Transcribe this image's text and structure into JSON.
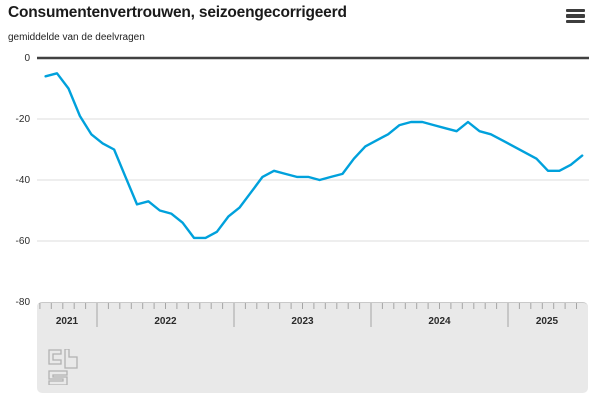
{
  "header": {
    "title": "Consumentenvertrouwen, seizoengecorrigeerd",
    "subtitle": "gemiddelde van de deelvragen",
    "menu_icon": "hamburger-icon"
  },
  "chart_data": {
    "type": "line",
    "title": "Consumentenvertrouwen, seizoengecorrigeerd",
    "subtitle": "gemiddelde van de deelvragen",
    "x_interval": "month",
    "x_start": "2021-08",
    "x_end": "2025-07",
    "year_labels": [
      "2021",
      "2022",
      "2023",
      "2024",
      "2025"
    ],
    "y_ticks": [
      0,
      -20,
      -40,
      -60,
      -80
    ],
    "ylim": [
      -80,
      0
    ],
    "grid": true,
    "legend": "none",
    "line_color": "#00a1dc",
    "series": [
      {
        "name": "consumentenvertrouwen",
        "values": [
          -6,
          -5,
          -10,
          -19,
          -25,
          -28,
          -30,
          -39,
          -48,
          -47,
          -50,
          -51,
          -54,
          -59,
          -59,
          -57,
          -52,
          -49,
          -44,
          -39,
          -37,
          -38,
          -39,
          -39,
          -40,
          -39,
          -38,
          -33,
          -29,
          -27,
          -25,
          -22,
          -21,
          -21,
          -22,
          -23,
          -24,
          -21,
          -24,
          -25,
          -27,
          -29,
          -31,
          -33,
          -37,
          -37,
          -35,
          -32
        ]
      }
    ]
  },
  "footer": {
    "logo_name": "cbs-logo"
  },
  "colors": {
    "line": "#00a1dc",
    "zero_axis": "#414141",
    "gridline": "#dedede",
    "axis_panel": "#e9e9e9",
    "tick": "#a5a5a5",
    "logo": "#b2b2b2",
    "text": "#1a1a1a"
  }
}
